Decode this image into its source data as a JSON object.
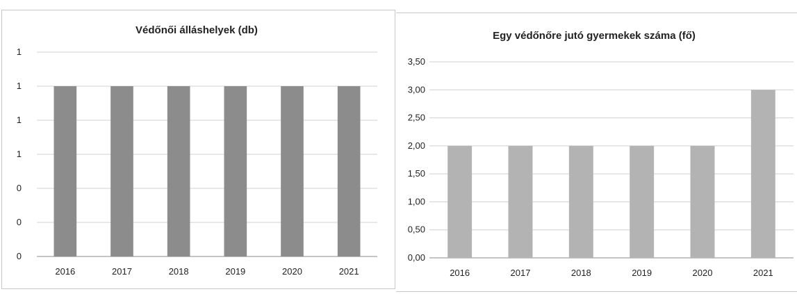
{
  "chart_data": [
    {
      "type": "bar",
      "title": "Védőnői álláshelyek (db)",
      "categories": [
        "2016",
        "2017",
        "2018",
        "2019",
        "2020",
        "2021"
      ],
      "values": [
        1,
        1,
        1,
        1,
        1,
        1
      ],
      "ylim": [
        0,
        1.2
      ],
      "yticks": [
        0,
        0.2,
        0.4,
        0.6,
        0.8,
        1.0,
        1.2
      ],
      "ytick_labels": [
        "0",
        "0",
        "0",
        "1",
        "1",
        "1",
        "1"
      ],
      "bar_color": "#8c8c8c",
      "grid": true
    },
    {
      "type": "bar",
      "title": "Egy védőnőre jutó gyermekek száma (fő)",
      "categories": [
        "2016",
        "2017",
        "2018",
        "2019",
        "2020",
        "2021"
      ],
      "values": [
        2,
        2,
        2,
        2,
        2,
        3
      ],
      "ylim": [
        0,
        3.5
      ],
      "yticks": [
        0,
        0.5,
        1.0,
        1.5,
        2.0,
        2.5,
        3.0,
        3.5
      ],
      "ytick_labels": [
        "0,00",
        "0,50",
        "1,00",
        "1,50",
        "2,00",
        "2,50",
        "3,00",
        "3,50"
      ],
      "bar_color": "#b3b3b3",
      "grid": true
    }
  ]
}
